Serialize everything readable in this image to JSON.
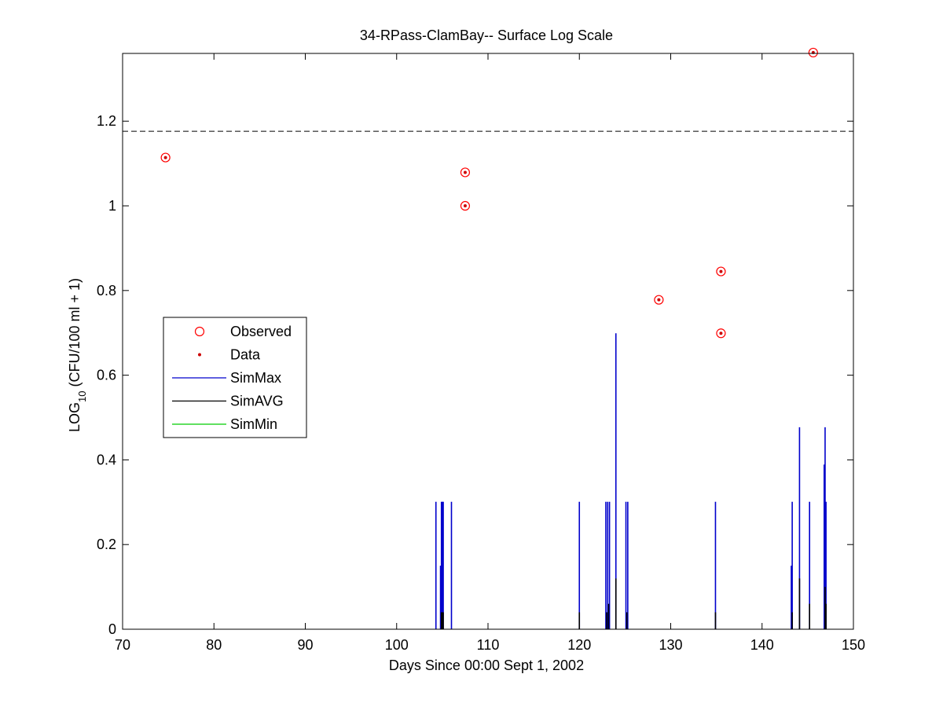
{
  "chart_data": {
    "type": "scatter",
    "title": "34-RPass-ClamBay-- Surface Log Scale",
    "xlabel": "Days Since 00:00 Sept 1, 2002",
    "ylabel_main": "LOG",
    "ylabel_sub": "10",
    "ylabel_rest": " (CFU/100 ml + 1)",
    "xlim": [
      70,
      150
    ],
    "ylim": [
      0,
      1.36
    ],
    "xticks": [
      70,
      80,
      90,
      100,
      110,
      120,
      130,
      140,
      150
    ],
    "yticks": [
      0,
      0.2,
      0.4,
      0.6,
      0.8,
      1,
      1.2
    ],
    "ytick_labels": [
      "0",
      "0.2",
      "0.4",
      "0.6",
      "0.8",
      "1",
      "1.2"
    ],
    "grid": false,
    "legend_position": "left",
    "threshold_line": {
      "y": 1.176,
      "style": "dashed",
      "color": "#000000"
    },
    "colors": {
      "observed": "#ff0000",
      "data": "#cc0000",
      "simmax": "#0000cc",
      "simavg": "#000000",
      "simmin": "#00cc00"
    },
    "series": [
      {
        "name": "Observed",
        "marker": "circle",
        "points": [
          [
            74.7,
            1.114
          ],
          [
            107.5,
            1.079
          ],
          [
            107.5,
            1.0
          ],
          [
            128.7,
            0.778
          ],
          [
            135.5,
            0.845
          ],
          [
            135.5,
            0.699
          ],
          [
            145.6,
            1.362
          ]
        ]
      },
      {
        "name": "Data",
        "marker": "dot",
        "points": [
          [
            74.7,
            1.114
          ],
          [
            107.5,
            1.079
          ],
          [
            107.5,
            1.0
          ],
          [
            128.7,
            0.778
          ],
          [
            135.5,
            0.845
          ],
          [
            135.5,
            0.699
          ],
          [
            145.6,
            1.362
          ]
        ]
      },
      {
        "name": "SimMax",
        "type": "spikes",
        "points": [
          [
            104.3,
            0.301
          ],
          [
            104.8,
            0.15
          ],
          [
            104.9,
            0.301
          ],
          [
            105.0,
            0.301
          ],
          [
            105.1,
            0.301
          ],
          [
            106.0,
            0.301
          ],
          [
            120.0,
            0.301
          ],
          [
            122.9,
            0.301
          ],
          [
            123.1,
            0.301
          ],
          [
            123.3,
            0.301
          ],
          [
            124.0,
            0.699
          ],
          [
            125.1,
            0.301
          ],
          [
            125.3,
            0.301
          ],
          [
            134.9,
            0.301
          ],
          [
            143.2,
            0.15
          ],
          [
            143.3,
            0.301
          ],
          [
            144.1,
            0.477
          ],
          [
            145.2,
            0.301
          ],
          [
            146.8,
            0.389
          ],
          [
            146.9,
            0.477
          ],
          [
            147.0,
            0.301
          ]
        ]
      },
      {
        "name": "SimAVG",
        "type": "spikes",
        "points": [
          [
            104.9,
            0.04
          ],
          [
            105.0,
            0.04
          ],
          [
            105.1,
            0.04
          ],
          [
            120.0,
            0.04
          ],
          [
            123.0,
            0.04
          ],
          [
            123.2,
            0.06
          ],
          [
            124.0,
            0.12
          ],
          [
            125.2,
            0.04
          ],
          [
            134.9,
            0.04
          ],
          [
            143.3,
            0.04
          ],
          [
            144.1,
            0.12
          ],
          [
            145.2,
            0.06
          ],
          [
            146.9,
            0.1
          ],
          [
            147.0,
            0.06
          ]
        ]
      },
      {
        "name": "SimMin",
        "type": "spikes",
        "points": []
      }
    ]
  }
}
